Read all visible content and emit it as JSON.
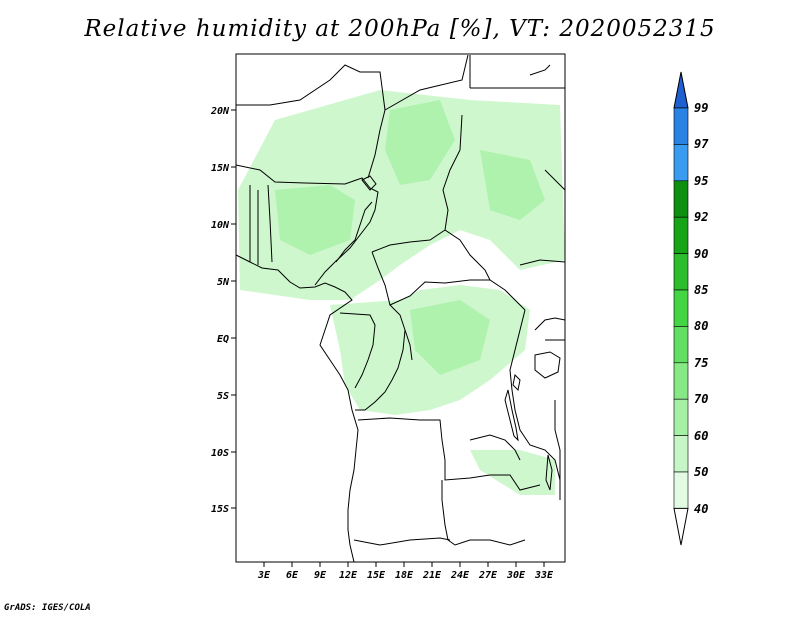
{
  "title": "Relative humidity at 200hPa [%], VT: 2020052315",
  "credit": "GrADS: IGES/COLA",
  "map": {
    "lat_ticks": [
      "20N",
      "15N",
      "10N",
      "5N",
      "EQ",
      "5S",
      "10S",
      "15S"
    ],
    "lon_ticks": [
      "3E",
      "6E",
      "9E",
      "12E",
      "15E",
      "18E",
      "21E",
      "24E",
      "27E",
      "30E",
      "33E"
    ]
  },
  "colorbar": {
    "labels": [
      "99",
      "97",
      "95",
      "92",
      "90",
      "85",
      "80",
      "75",
      "70",
      "60",
      "50",
      "40"
    ],
    "colors": [
      "#1e5fd2",
      "#2a82e4",
      "#3a9cf0",
      "#0f8f0f",
      "#17a417",
      "#2cbd2c",
      "#44d544",
      "#62df62",
      "#86e986",
      "#a6f0a6",
      "#c6f6c6",
      "#e3fbe3"
    ]
  }
}
